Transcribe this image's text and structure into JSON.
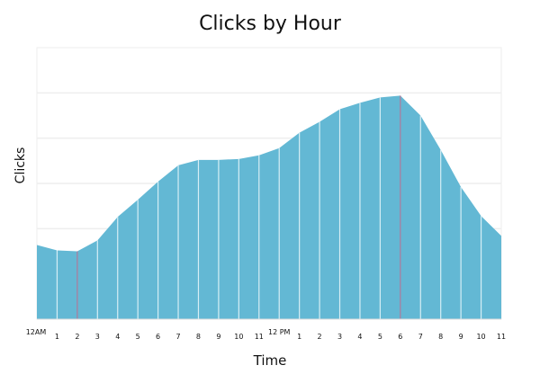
{
  "chart_data": {
    "type": "area",
    "title": "Clicks by Hour",
    "xlabel": "Time",
    "ylabel": "Clicks",
    "categories": [
      "12AM",
      "1",
      "2",
      "3",
      "4",
      "5",
      "6",
      "7",
      "8",
      "9",
      "10",
      "11",
      "12 PM",
      "1",
      "2",
      "3",
      "4",
      "5",
      "6",
      "7",
      "8",
      "9",
      "10",
      "11"
    ],
    "values": [
      1.64,
      1.52,
      1.5,
      1.74,
      2.26,
      2.64,
      3.04,
      3.4,
      3.52,
      3.52,
      3.54,
      3.62,
      3.78,
      4.12,
      4.36,
      4.64,
      4.78,
      4.9,
      4.94,
      4.5,
      3.74,
      2.92,
      2.28,
      1.84
    ],
    "ylim": [
      0,
      6
    ],
    "grid": true,
    "y_tick_labels_shown": false,
    "highlighted_indices": [
      2,
      18
    ],
    "colors": {
      "fill": "#63b8d4",
      "divider": "#d6eef5",
      "highlight": "#b07a9a",
      "grid": "#eeeeee"
    }
  }
}
